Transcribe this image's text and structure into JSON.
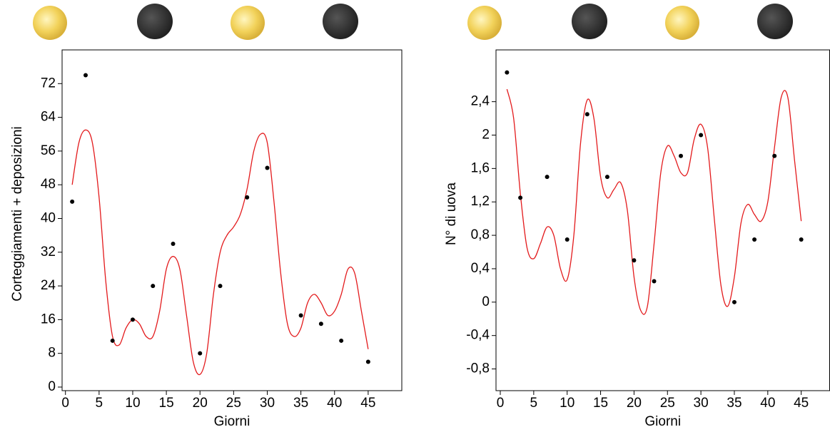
{
  "chart_data": [
    {
      "type": "scatter",
      "x_label": "Giorni",
      "y_label": "Corteggiamenti + deposizioni",
      "x": [
        1,
        3,
        7,
        10,
        13,
        16,
        20,
        23,
        27,
        30,
        35,
        38,
        41,
        45
      ],
      "values": [
        44,
        74,
        11,
        16,
        24,
        34,
        8,
        24,
        45,
        52,
        17,
        15,
        11,
        6
      ],
      "color": "#000000",
      "fit_x": [
        1,
        2,
        3,
        4,
        5,
        6,
        7,
        8,
        9,
        10,
        11,
        12,
        13,
        14,
        15,
        16,
        17,
        18,
        19,
        20,
        21,
        22,
        23,
        24,
        25,
        26,
        27,
        28,
        29,
        30,
        31,
        32,
        33,
        34,
        35,
        36,
        37,
        38,
        39,
        40,
        41,
        42,
        43,
        44,
        45
      ],
      "fit_values": [
        48,
        58,
        61,
        58,
        45,
        25,
        12,
        10,
        14,
        16,
        15,
        12,
        12,
        18,
        28,
        31,
        28,
        17,
        6,
        3,
        8,
        22,
        32,
        36,
        38,
        41,
        47,
        56,
        60,
        58,
        44,
        27,
        15,
        12,
        14,
        20,
        22,
        20,
        17,
        18,
        22,
        28,
        27,
        18,
        9
      ],
      "fit_color": "#e31a1c",
      "xlim": [
        -0.5,
        50
      ],
      "xticks": [
        0,
        5,
        10,
        15,
        20,
        25,
        30,
        35,
        40,
        45
      ],
      "ylim": [
        -0.85,
        80
      ],
      "yticks": [
        0,
        8,
        16,
        24,
        32,
        40,
        48,
        56,
        64,
        72
      ]
    },
    {
      "type": "scatter",
      "x_label": "Giorni",
      "y_label": "N° di uova",
      "x": [
        1,
        3,
        7,
        10,
        13,
        16,
        20,
        23,
        27,
        30,
        35,
        38,
        41,
        45
      ],
      "values": [
        2.75,
        1.25,
        1.5,
        0.75,
        2.25,
        1.5,
        0.5,
        0.25,
        1.75,
        2.0,
        0,
        0.75,
        1.75,
        0.75
      ],
      "color": "#000000",
      "fit_x": [
        1,
        2,
        3,
        4,
        5,
        6,
        7,
        8,
        9,
        10,
        11,
        12,
        13,
        14,
        15,
        16,
        17,
        18,
        19,
        20,
        21,
        22,
        23,
        24,
        25,
        26,
        27,
        28,
        29,
        30,
        31,
        32,
        33,
        34,
        35,
        36,
        37,
        38,
        39,
        40,
        41,
        42,
        43,
        44,
        45
      ],
      "fit_values": [
        2.55,
        2.2,
        1.3,
        0.65,
        0.52,
        0.7,
        0.9,
        0.8,
        0.4,
        0.27,
        0.8,
        1.9,
        2.42,
        2.2,
        1.5,
        1.25,
        1.35,
        1.43,
        1.1,
        0.3,
        -0.1,
        -0.05,
        0.7,
        1.55,
        1.87,
        1.75,
        1.55,
        1.55,
        1.95,
        2.13,
        1.85,
        1.0,
        0.2,
        -0.05,
        0.3,
        0.95,
        1.17,
        1.05,
        0.97,
        1.2,
        1.85,
        2.45,
        2.45,
        1.7,
        0.97
      ],
      "fit_color": "#e31a1c",
      "xlim": [
        -0.64,
        49.25
      ],
      "xticks": [
        0,
        5,
        10,
        15,
        20,
        25,
        30,
        35,
        40,
        45
      ],
      "ylim": [
        -1.06,
        3.02
      ],
      "yticks": [
        {
          "value": -0.8,
          "label": "-0,8"
        },
        {
          "value": -0.4,
          "label": "-0,4"
        },
        0,
        {
          "value": 0.4,
          "label": "0,4"
        },
        {
          "value": 0.8,
          "label": "0,8"
        },
        {
          "value": 1.2,
          "label": "1,2"
        },
        {
          "value": 1.6,
          "label": "1,6"
        },
        2,
        {
          "value": 2.4,
          "label": "2,4"
        }
      ]
    }
  ]
}
